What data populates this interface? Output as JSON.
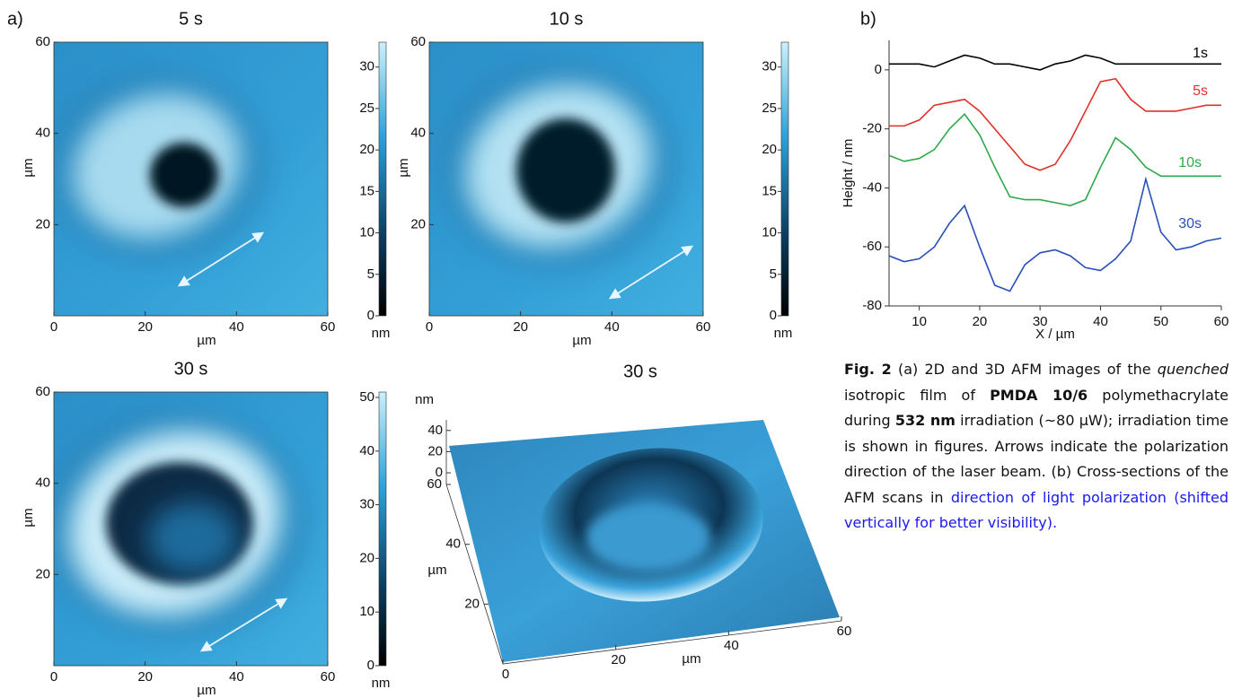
{
  "panel_a": {
    "label": "a)",
    "images": [
      {
        "title": "5 s",
        "xticks": [
          0,
          20,
          40,
          60
        ],
        "yticks": [
          20,
          40,
          60
        ],
        "xlabel": "µm",
        "ylabel": "µm",
        "clim": [
          0,
          33
        ],
        "cticks": [
          0,
          5,
          10,
          15,
          20,
          25,
          30
        ],
        "clabel": "nm"
      },
      {
        "title": "10 s",
        "xticks": [
          0,
          20,
          40,
          60
        ],
        "yticks": [
          20,
          40,
          60
        ],
        "xlabel": "µm",
        "ylabel": "µm",
        "clim": [
          0,
          33
        ],
        "cticks": [
          0,
          5,
          10,
          15,
          20,
          25,
          30
        ],
        "clabel": "nm"
      },
      {
        "title": "30 s",
        "xticks": [
          0,
          20,
          40,
          60
        ],
        "yticks": [
          20,
          40,
          60
        ],
        "xlabel": "µm",
        "ylabel": "µm",
        "clim": [
          0,
          51
        ],
        "cticks": [
          0,
          10,
          20,
          30,
          40,
          50
        ],
        "clabel": "nm"
      }
    ],
    "view3d": {
      "title": "30 s",
      "zlabel": "nm",
      "zlim": [
        0,
        50
      ],
      "zticks": [
        0,
        20,
        40
      ],
      "ylabel": "µm",
      "ylim": [
        0,
        60
      ],
      "yticks": [
        20,
        40,
        60
      ],
      "xlabel": "µm",
      "xlim": [
        0,
        60
      ],
      "xticks": [
        0,
        20,
        40,
        60
      ]
    }
  },
  "chart_data": {
    "type": "line",
    "panel_label": "b)",
    "xlabel": "X / µm",
    "ylabel": "Height / nm",
    "x": [
      5,
      7.5,
      10,
      12.5,
      15,
      17.5,
      20,
      22.5,
      25,
      27.5,
      30,
      32.5,
      35,
      37.5,
      40,
      42.5,
      45,
      47.5,
      50,
      52.5,
      55,
      57.5,
      60
    ],
    "xlim": [
      5,
      60
    ],
    "xticks": [
      10,
      20,
      30,
      40,
      50,
      60
    ],
    "ylim": [
      -80,
      10
    ],
    "yticks": [
      -80,
      -60,
      -40,
      -20,
      0
    ],
    "series": [
      {
        "name": "1s",
        "color": "#000000",
        "values": [
          2,
          2,
          2,
          1,
          3,
          5,
          4,
          2,
          2,
          1,
          0,
          2,
          3,
          5,
          4,
          2,
          2,
          2,
          2,
          2,
          2,
          2,
          2
        ]
      },
      {
        "name": "5s",
        "color": "#e0302a",
        "values": [
          -19,
          -19,
          -17,
          -12,
          -11,
          -10,
          -14,
          -20,
          -26,
          -32,
          -34,
          -32,
          -24,
          -14,
          -4,
          -3,
          -10,
          -14,
          -14,
          -14,
          -13,
          -12,
          -12
        ]
      },
      {
        "name": "10s",
        "color": "#2ea84a",
        "values": [
          -29,
          -31,
          -30,
          -27,
          -20,
          -15,
          -22,
          -33,
          -43,
          -44,
          -44,
          -45,
          -46,
          -44,
          -33,
          -23,
          -27,
          -33,
          -36,
          -36,
          -36,
          -36,
          -36
        ]
      },
      {
        "name": "30s",
        "color": "#2850b8",
        "values": [
          -63,
          -65,
          -64,
          -60,
          -52,
          -46,
          -60,
          -73,
          -75,
          -66,
          -62,
          -61,
          -63,
          -67,
          -68,
          -64,
          -58,
          -37,
          -55,
          -61,
          -60,
          -58,
          -57
        ]
      }
    ]
  },
  "caption": [
    {
      "text": "Fig. 2",
      "style": "bold"
    },
    {
      "text": " (a) 2D and 3D AFM images of the ",
      "style": "normal"
    },
    {
      "text": "quenched",
      "style": "italic"
    },
    {
      "text": " isotropic film of ",
      "style": "normal"
    },
    {
      "text": "PMDA 10/6",
      "style": "bold"
    },
    {
      "text": " polymethacrylate during ",
      "style": "normal"
    },
    {
      "text": "532 nm",
      "style": "bold"
    },
    {
      "text": " irradiation (~80 µW); irradiation time is shown in figures. Arrows indicate the polarization direction of the laser beam. (b) Cross-sections of the AFM scans in ",
      "style": "normal"
    },
    {
      "text": "direction of light polarization (shifted vertically for better visibility).",
      "style": "blue"
    }
  ]
}
